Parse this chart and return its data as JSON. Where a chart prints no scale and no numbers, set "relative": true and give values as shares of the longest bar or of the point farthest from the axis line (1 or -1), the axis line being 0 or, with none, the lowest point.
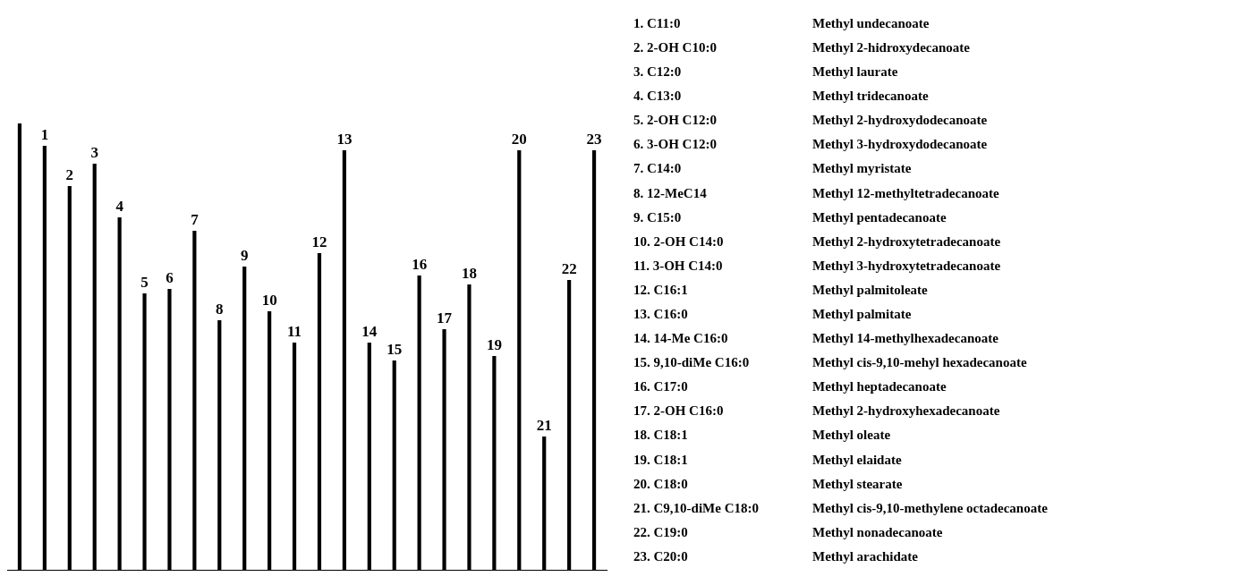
{
  "chart_data": {
    "type": "bar",
    "relative": true,
    "color": "#000000",
    "grid": false,
    "legend": false,
    "categories": [
      null,
      "1",
      "2",
      "3",
      "4",
      "5",
      "6",
      "7",
      "8",
      "9",
      "10",
      "11",
      "12",
      "13",
      "14",
      "15",
      "16",
      "17",
      "18",
      "19",
      "20",
      "21",
      "22",
      "23"
    ],
    "values": [
      1,
      0.95,
      0.86,
      0.91,
      0.79,
      0.62,
      0.63,
      0.76,
      0.56,
      0.68,
      0.58,
      0.51,
      0.71,
      0.94,
      0.51,
      0.47,
      0.66,
      0.54,
      0.64,
      0.48,
      0.94,
      0.3,
      0.65,
      0.94
    ],
    "annotations": [
      "1. C11:0",
      "Methyl undecanoate",
      "2. 2-OH C10:0",
      "Methyl 2-hidroxydecanoate",
      "3. C12:0",
      "Methyl laurate",
      "4. C13:0",
      "Methyl tridecanoate",
      "5. 2-OH C12:0",
      "Methyl 2-hydroxydodecanoate",
      "6. 3-OH C12:0",
      "Methyl 3-hydroxydodecanoate",
      "7. C14:0",
      "Methyl myristate",
      "8. 12-MeC14",
      "Methyl 12-methyltetradecanoate",
      "9. C15:0",
      "Methyl pentadecanoate",
      "10. 2-OH C14:0",
      "Methyl 2-hydroxytetradecanoate",
      "11. 3-OH C14:0",
      "Methyl 3-hydroxytetradecanoate",
      "12. C16:1",
      "Methyl palmitoleate",
      "13. C16:0",
      "Methyl palmitate",
      "14. 14-Me C16:0",
      "Methyl 14-methylhexadecanoate",
      "15. 9,10-diMe C16:0",
      "Methyl cis-9,10-mehyl hexadecanoate",
      "16. C17:0",
      "Methyl heptadecanoate",
      "17. 2-OH C16:0",
      "Methyl 2-hydroxyhexadecanoate",
      "18. C18:1",
      "Methyl oleate",
      "19. C18:1",
      "Methyl elaidate",
      "20. C18:0",
      "Methyl stearate",
      "21. C9,10-diMe C18:0",
      "Methyl cis-9,10-methylene octadecanoate",
      "22. C19:0",
      "Methyl nonadecanoate",
      "23. C20:0",
      "Methyl arachidate"
    ]
  }
}
